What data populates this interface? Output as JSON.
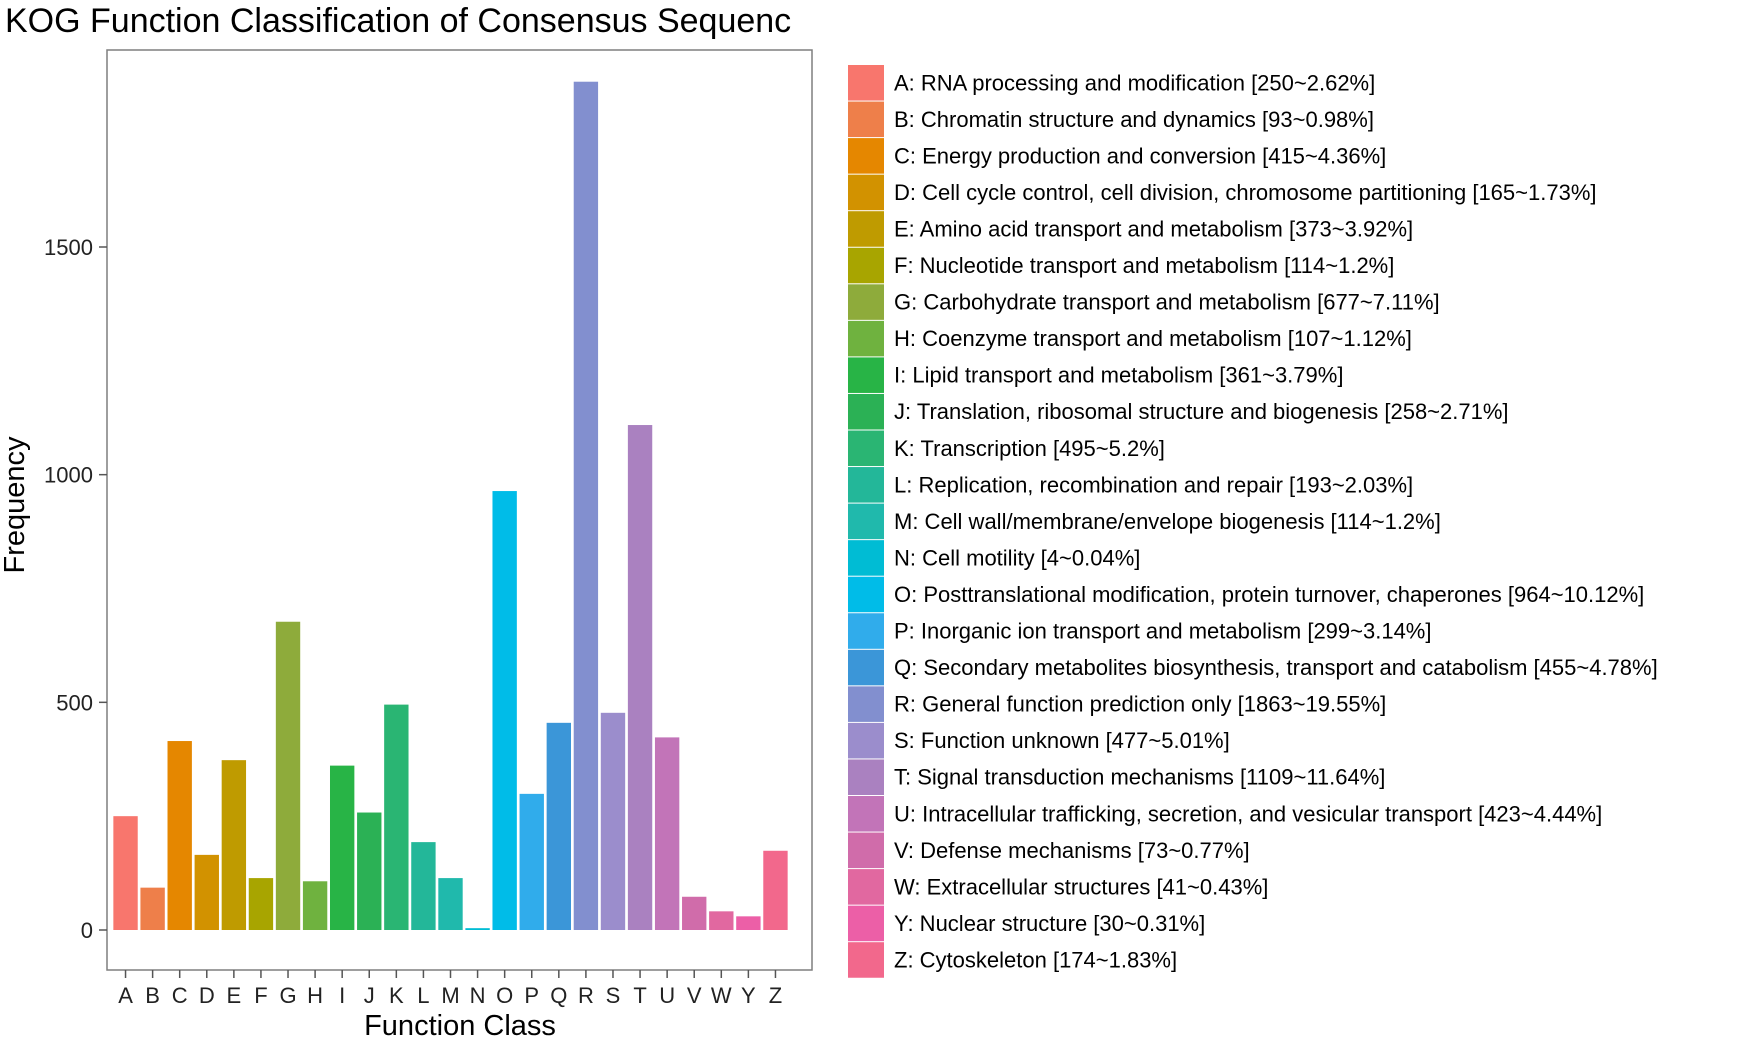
{
  "chart_data": {
    "type": "bar",
    "title": "KOG Function Classification of Consensus Sequenc",
    "xlabel": "Function Class",
    "ylabel": "Frequency",
    "ylim": [
      0,
      1950
    ],
    "yticks": [
      0,
      500,
      1000,
      1500
    ],
    "grid": false,
    "legend_position": "right",
    "categories": [
      "A",
      "B",
      "C",
      "D",
      "E",
      "F",
      "G",
      "H",
      "I",
      "J",
      "K",
      "L",
      "M",
      "N",
      "O",
      "P",
      "Q",
      "R",
      "S",
      "T",
      "U",
      "V",
      "W",
      "Y",
      "Z"
    ],
    "values": [
      250,
      93,
      415,
      165,
      373,
      114,
      677,
      107,
      361,
      258,
      495,
      193,
      114,
      4,
      964,
      299,
      455,
      1863,
      477,
      1109,
      423,
      73,
      41,
      30,
      174
    ],
    "colors": [
      "#F8766D",
      "#EE7F4A",
      "#E58700",
      "#D29200",
      "#BF9B00",
      "#A8A500",
      "#8EAB3B",
      "#6FB23F",
      "#28B446",
      "#2BB155",
      "#2AB573",
      "#23B799",
      "#20B9AC",
      "#00BCD4",
      "#00BCE8",
      "#30ACEB",
      "#3B96D8",
      "#828FCF",
      "#9B8DCC",
      "#AA81C0",
      "#C274B8",
      "#D06CAA",
      "#E168A0",
      "#EC5FA7",
      "#F2688C"
    ],
    "legend": [
      "A: RNA processing and modification [250~2.62%]",
      "B: Chromatin structure and dynamics [93~0.98%]",
      "C: Energy production and conversion [415~4.36%]",
      "D: Cell cycle control, cell division, chromosome partitioning [165~1.73%]",
      "E: Amino acid transport and metabolism [373~3.92%]",
      "F: Nucleotide transport and metabolism [114~1.2%]",
      "G: Carbohydrate transport and metabolism [677~7.11%]",
      "H: Coenzyme transport and metabolism [107~1.12%]",
      "I: Lipid transport and metabolism [361~3.79%]",
      "J: Translation, ribosomal structure and biogenesis [258~2.71%]",
      "K: Transcription [495~5.2%]",
      "L: Replication, recombination and repair [193~2.03%]",
      "M: Cell wall/membrane/envelope biogenesis [114~1.2%]",
      "N: Cell motility [4~0.04%]",
      "O: Posttranslational modification, protein turnover, chaperones [964~10.12%]",
      "P: Inorganic ion transport and metabolism [299~3.14%]",
      "Q: Secondary metabolites biosynthesis, transport and catabolism [455~4.78%]",
      "R: General function prediction only [1863~19.55%]",
      "S: Function unknown [477~5.01%]",
      "T: Signal transduction mechanisms [1109~11.64%]",
      "U: Intracellular trafficking, secretion, and vesicular transport [423~4.44%]",
      "V: Defense mechanisms [73~0.77%]",
      "W: Extracellular structures [41~0.43%]",
      "Y: Nuclear structure [30~0.31%]",
      "Z: Cytoskeleton [174~1.83%]"
    ]
  }
}
